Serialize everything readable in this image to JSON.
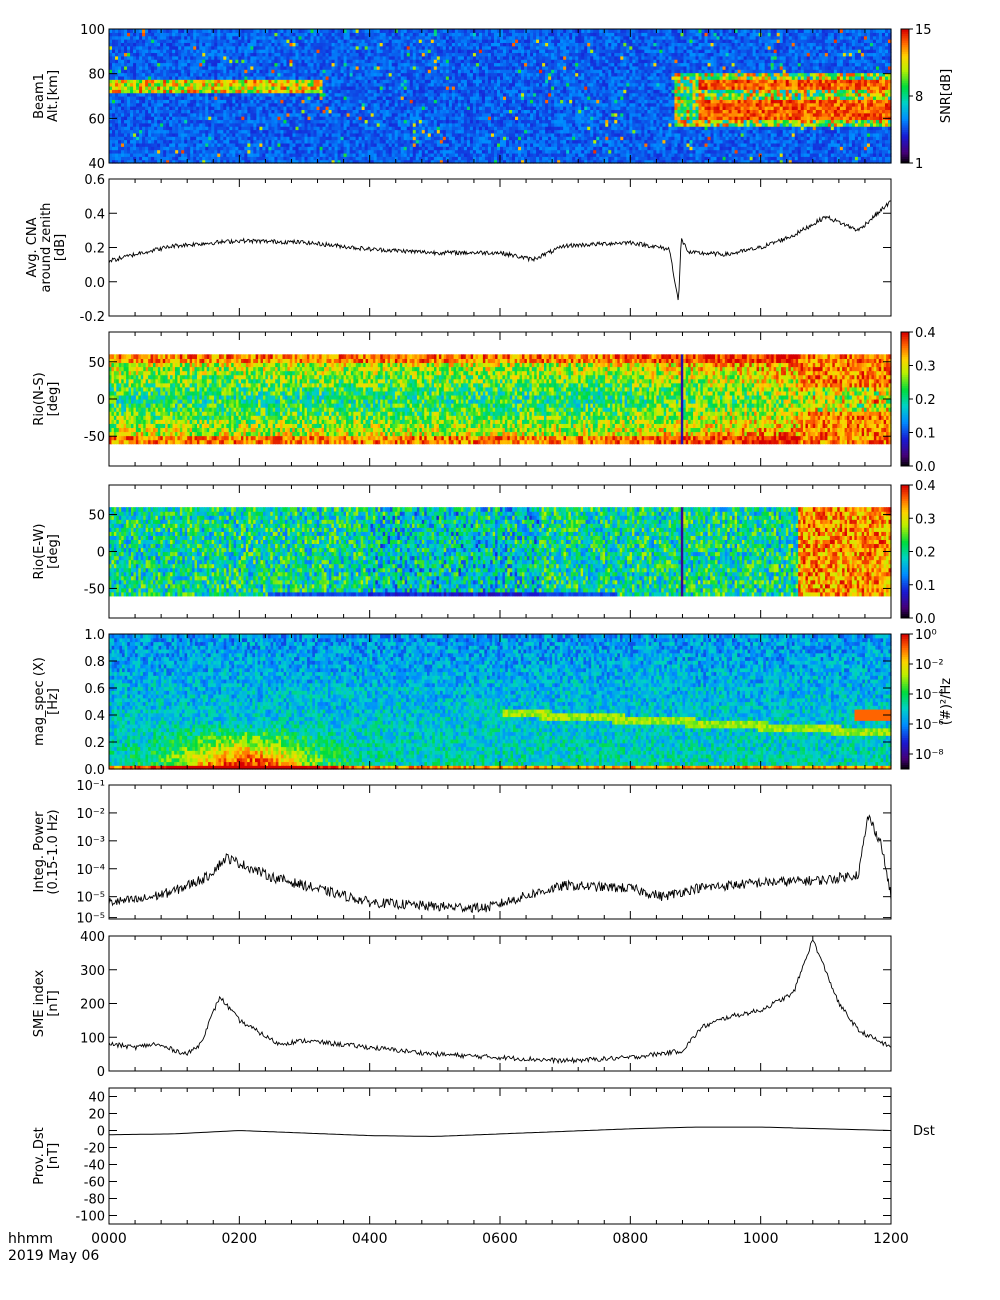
{
  "figure": {
    "time_label": "hhmm",
    "date_label": "2019 May 06",
    "x_ticks": [
      "0000",
      "0200",
      "0400",
      "0600",
      "0800",
      "1000",
      "1200"
    ]
  },
  "chart_data": [
    {
      "id": "snr",
      "type": "heatmap",
      "ylabel": [
        "Beam1",
        "Alt.[km]"
      ],
      "ylim": [
        40,
        100
      ],
      "yticks": [
        40,
        60,
        80,
        100
      ],
      "colorbar": {
        "label": "SNR[dB]",
        "ticks": [
          "1",
          "8",
          "15"
        ],
        "range": [
          1,
          15
        ]
      }
    },
    {
      "id": "cna",
      "type": "line",
      "ylabel": [
        "Avg. CNA",
        "around zenith",
        "[dB]"
      ],
      "ylim": [
        -0.2,
        0.6
      ],
      "yticks": [
        "-0.2",
        "0.0",
        "0.2",
        "0.4",
        "0.6"
      ],
      "x": [
        0,
        50,
        100,
        200,
        300,
        400,
        500,
        600,
        650,
        700,
        800,
        860,
        874,
        878,
        890,
        950,
        1000,
        1050,
        1100,
        1150,
        1200
      ],
      "values": [
        0.12,
        0.17,
        0.21,
        0.24,
        0.23,
        0.19,
        0.17,
        0.17,
        0.13,
        0.21,
        0.23,
        0.19,
        -0.12,
        0.25,
        0.17,
        0.16,
        0.2,
        0.27,
        0.38,
        0.3,
        0.47
      ]
    },
    {
      "id": "rio_ns",
      "type": "heatmap",
      "ylabel": [
        "Rio(N-S)",
        "[deg]"
      ],
      "ylim": [
        -90,
        90
      ],
      "yticks": [
        "-50",
        "0",
        "50"
      ],
      "colorbar": {
        "label": "",
        "ticks": [
          "0.0",
          "0.1",
          "0.2",
          "0.3",
          "0.4"
        ],
        "range": [
          0,
          0.4
        ]
      }
    },
    {
      "id": "rio_ew",
      "type": "heatmap",
      "ylabel": [
        "Rio(E-W)",
        "[deg]"
      ],
      "ylim": [
        -90,
        90
      ],
      "yticks": [
        "-50",
        "0",
        "50"
      ],
      "colorbar": {
        "label": "",
        "ticks": [
          "0.0",
          "0.1",
          "0.2",
          "0.3",
          "0.4"
        ],
        "range": [
          0,
          0.4
        ]
      }
    },
    {
      "id": "mag_spec",
      "type": "heatmap",
      "ylabel": [
        "mag_spec (X)",
        "[Hz]"
      ],
      "ylim": [
        0,
        1.0
      ],
      "yticks": [
        "0.0",
        "0.2",
        "0.4",
        "0.6",
        "0.8",
        "1.0"
      ],
      "colorbar": {
        "label": "(#)²/Hz",
        "ticks": [
          "10⁻⁸",
          "10⁻⁶",
          "10⁻⁴",
          "10⁻²",
          "10⁰"
        ],
        "range": [
          -9,
          0
        ],
        "scale": "log"
      }
    },
    {
      "id": "integ_power",
      "type": "line",
      "ylabel": [
        "Integ. Power",
        "(0.15-1.0 Hz)"
      ],
      "ylim": [
        -5.8,
        -1
      ],
      "scale": "log",
      "yticks": [
        "10⁻⁵",
        "10⁻⁵",
        "10⁻⁴",
        "10⁻³",
        "10⁻²",
        "10⁻¹"
      ],
      "x": [
        0,
        50,
        100,
        150,
        180,
        200,
        250,
        300,
        350,
        400,
        500,
        580,
        650,
        700,
        800,
        850,
        900,
        1000,
        1100,
        1150,
        1165,
        1185,
        1200
      ],
      "values": [
        -5.2,
        -5.1,
        -4.8,
        -4.3,
        -3.6,
        -3.8,
        -4.3,
        -4.6,
        -4.9,
        -5.2,
        -5.35,
        -5.4,
        -4.9,
        -4.6,
        -4.7,
        -5.0,
        -4.7,
        -4.5,
        -4.4,
        -4.2,
        -2.1,
        -3.1,
        -5.0
      ]
    },
    {
      "id": "sme",
      "type": "line",
      "ylabel": [
        "SME index",
        "[nT]"
      ],
      "ylim": [
        0,
        400
      ],
      "yticks": [
        "0",
        "100",
        "200",
        "300",
        "400"
      ],
      "x": [
        0,
        40,
        70,
        120,
        140,
        170,
        200,
        260,
        300,
        350,
        400,
        500,
        600,
        700,
        800,
        880,
        910,
        950,
        1000,
        1050,
        1080,
        1120,
        1150,
        1200
      ],
      "values": [
        80,
        70,
        80,
        50,
        80,
        220,
        150,
        80,
        90,
        80,
        70,
        50,
        40,
        30,
        40,
        60,
        130,
        160,
        180,
        230,
        390,
        200,
        120,
        70
      ]
    },
    {
      "id": "dst",
      "type": "line",
      "ylabel": [
        "Prov. Dst",
        "[nT]"
      ],
      "ylim": [
        -110,
        50
      ],
      "yticks": [
        "-100",
        "-80",
        "-60",
        "-40",
        "-20",
        "0",
        "20",
        "40"
      ],
      "series_label": "Dst",
      "x": [
        0,
        100,
        200,
        300,
        400,
        500,
        600,
        700,
        800,
        900,
        1000,
        1100,
        1200
      ],
      "values": [
        -5,
        -4,
        0,
        -3,
        -6,
        -7,
        -4,
        -1,
        2,
        4,
        4,
        2,
        0
      ]
    }
  ]
}
